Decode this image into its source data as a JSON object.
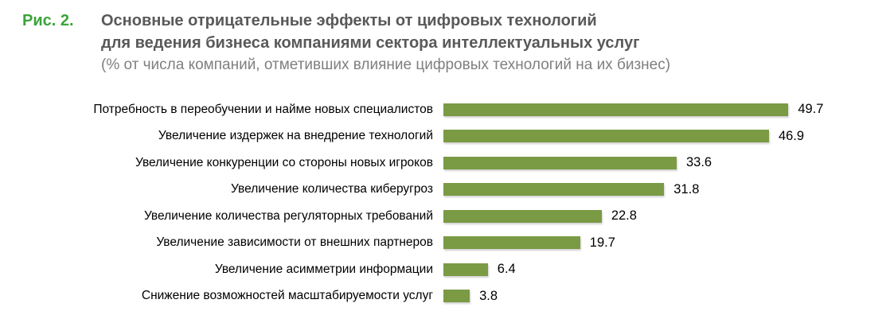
{
  "header": {
    "figure_label": "Рис. 2.",
    "title_line1": "Основные отрицательные эффекты от цифровых технологий",
    "title_line2": "для ведения бизнеса компаниями сектора интеллектуальных услуг",
    "subtitle": "(% от числа компаний, отметивших влияние цифровых технологий на их бизнес)"
  },
  "colors": {
    "bar": "#7a9a44",
    "figure_label": "#3aa43a",
    "title": "#595959",
    "subtitle": "#7f7f7f",
    "label_text": "#000000"
  },
  "chart_data": {
    "type": "bar",
    "orientation": "horizontal",
    "title": "Основные отрицательные эффекты от цифровых технологий для ведения бизнеса компаниями сектора интеллектуальных услуг",
    "subtitle": "(% от числа компаний, отметивших влияние цифровых технологий на их бизнес)",
    "categories": [
      "Потребность в переобучении и найме новых специалистов",
      "Увеличение издержек на внедрение технологий",
      "Увеличение конкуренции со стороны новых игроков",
      "Увеличение количества киберугроз",
      "Увеличение количества регуляторных требований",
      "Увеличение зависимости от внешних партнеров",
      "Увеличение асимметрии информации",
      "Снижение возможностей масштабируемости услуг"
    ],
    "values": [
      49.7,
      46.9,
      33.6,
      31.8,
      22.8,
      19.7,
      6.4,
      3.8
    ],
    "value_labels": true,
    "xlabel": "",
    "ylabel": "",
    "xlim": [
      0,
      50
    ],
    "grid": false,
    "legend": false,
    "bar_color": "#7a9a44"
  }
}
